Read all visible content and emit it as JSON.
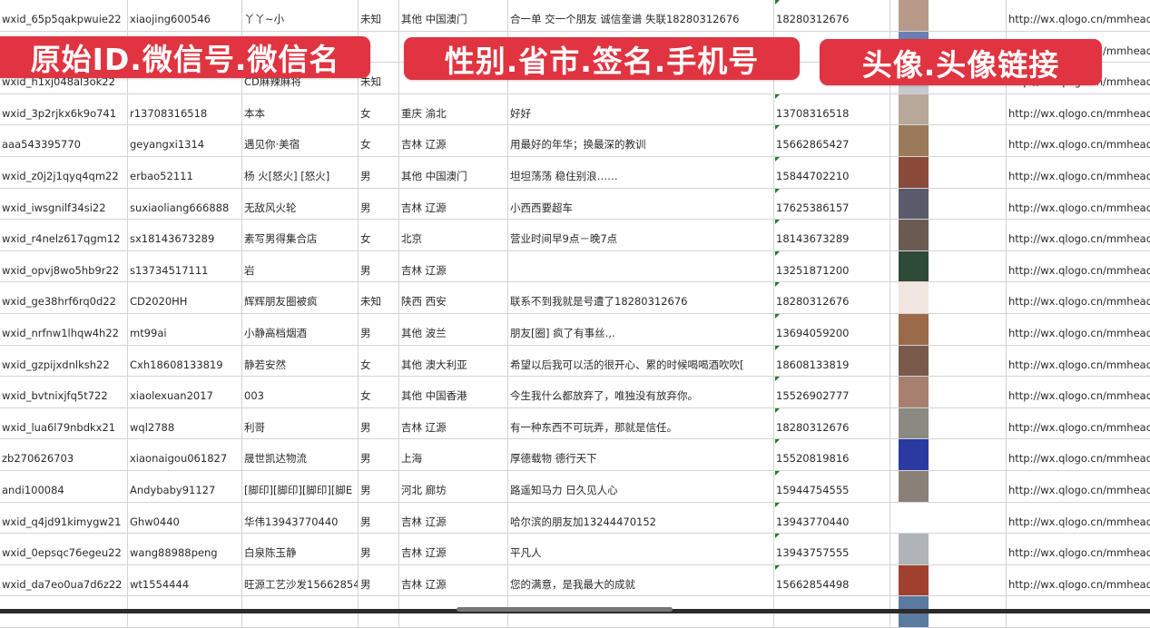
{
  "banners": [
    "原始ID.微信号.微信名",
    "性别.省市.签名.手机号",
    "头像.头像链接"
  ],
  "rows": [
    {
      "id": "wxid_65p5qakpwuie22",
      "wechat": "xiaojing600546",
      "name": "丫丫~小",
      "gender": "未知",
      "region": "其他 中国澳门",
      "signature": "合一单 交一个朋友 诚信奎谱 失联18280312676",
      "phone": "18280312676",
      "avatar_color": "#b89a8a",
      "url": "http://wx.qlogo.cn/mmhead"
    },
    {
      "id": "",
      "wechat": "",
      "name": "",
      "gender": "",
      "region": "",
      "signature": "",
      "phone": "",
      "avatar_color": "#6a7fb0",
      "url": "http://wx.qlogo.cn/mmhead"
    },
    {
      "id": "wxid_h1xj048al3ok22",
      "wechat": "",
      "name": "CD麻辣麻将",
      "gender": "未知",
      "region": "",
      "signature": "",
      "phone": "",
      "avatar_color": "#c8c8d0",
      "url": "http://wx.qlogo.cn/mmhead"
    },
    {
      "id": "wxid_3p2rjkx6k9o741",
      "wechat": "r13708316518",
      "name": "本本",
      "gender": "女",
      "region": "重庆 渝北",
      "signature": "好好",
      "phone": "13708316518",
      "avatar_color": "#b8a89a",
      "url": "http://wx.qlogo.cn/mmhead"
    },
    {
      "id": "aaa543395770",
      "wechat": "geyangxi1314",
      "name": "遇见你·美宿",
      "gender": "女",
      "region": "吉林 辽源",
      "signature": "用最好的年华；换最深的教训",
      "phone": "15662865427",
      "avatar_color": "#9a7a5a",
      "url": "http://wx.qlogo.cn/mmhead"
    },
    {
      "id": "wxid_z0j2j1qyq4qm22",
      "wechat": "erbao52111",
      "name": "杨 火[怒火] [怒火]",
      "gender": "男",
      "region": "其他 中国澳门",
      "signature": "坦坦荡荡 稳住别浪……",
      "phone": "15844702210",
      "avatar_color": "#8a4a3a",
      "url": "http://wx.qlogo.cn/mmhead"
    },
    {
      "id": "wxid_iwsgnilf34si22",
      "wechat": "suxiaoliang666888",
      "name": "无敌风火轮",
      "gender": "男",
      "region": "吉林 辽源",
      "signature": "小西西要超车",
      "phone": "17625386157",
      "avatar_color": "#5a5a6a",
      "url": "http://wx.qlogo.cn/mmhead"
    },
    {
      "id": "wxid_r4nelz617qgm12",
      "wechat": "sx18143673289",
      "name": "素写男得集合店",
      "gender": "女",
      "region": "北京",
      "signature": "营业时间早9点－晚7点",
      "phone": "18143673289",
      "avatar_color": "#6a5a50",
      "url": "http://wx.qlogo.cn/mmhead"
    },
    {
      "id": "wxid_opvj8wo5hb9r22",
      "wechat": "s13734517111",
      "name": "岩",
      "gender": "男",
      "region": "吉林 辽源",
      "signature": "",
      "phone": "13251871200",
      "avatar_color": "#2e4a38",
      "url": "http://wx.qlogo.cn/mmhead"
    },
    {
      "id": "wxid_ge38hrf6rq0d22",
      "wechat": "CD2020HH",
      "name": "辉辉朋友圈被疯",
      "gender": "未知",
      "region": "陕西 西安",
      "signature": "联系不到我就是号遭了18280312676",
      "phone": "18280312676",
      "avatar_color": "#f2e6e0",
      "url": "http://wx.qlogo.cn/mmhead"
    },
    {
      "id": "wxid_nrfnw1lhqw4h22",
      "wechat": "mt99ai",
      "name": "小静高档烟酒",
      "gender": "男",
      "region": "其他 波兰",
      "signature": "朋友[圈] 疯了有事丝.,.",
      "phone": "13694059200",
      "avatar_color": "#9a6a4a",
      "url": "http://wx.qlogo.cn/mmhead"
    },
    {
      "id": "wxid_gzpijxdnlksh22",
      "wechat": "Cxh18608133819",
      "name": "静若安然",
      "gender": "女",
      "region": "其他 澳大利亚",
      "signature": "希望以后我可以活的很开心、累的时候喝喝酒吹吹[",
      "phone": "18608133819",
      "avatar_color": "#7a5a4a",
      "url": "http://wx.qlogo.cn/mmhead"
    },
    {
      "id": "wxid_bvtnixjfq5t722",
      "wechat": "xiaolexuan2017",
      "name": "003",
      "gender": "女",
      "region": "其他 中国香港",
      "signature": "今生我什么都放弃了，唯独没有放弃你。",
      "phone": "15526902777",
      "avatar_color": "#a88070",
      "url": "http://wx.qlogo.cn/mmhead"
    },
    {
      "id": "wxid_lua6l79nbdkx21",
      "wechat": "wql2788",
      "name": "利哥",
      "gender": "男",
      "region": "吉林 辽源",
      "signature": "有一种东西不可玩弄，那就是信任。",
      "phone": "18280312676",
      "avatar_color": "#8a8a80",
      "url": "http://wx.qlogo.cn/mmhead"
    },
    {
      "id": "zb270626703",
      "wechat": "xiaonaigou061827",
      "name": "晟世凯达物流",
      "gender": "男",
      "region": "上海",
      "signature": "厚德载物 德行天下",
      "phone": "15520819816",
      "avatar_color": "#2a3aa0",
      "url": "http://wx.qlogo.cn/mmhead"
    },
    {
      "id": "andi100084",
      "wechat": "Andybaby91127",
      "name": "[脚印][脚印][脚印][脚E",
      "gender": "男",
      "region": "河北 廊坊",
      "signature": "路遥知马力 日久见人心",
      "phone": "15944754555",
      "avatar_color": "#8a8078",
      "url": "http://wx.qlogo.cn/mmhead"
    },
    {
      "id": "wxid_q4jd91kimygw21",
      "wechat": "Ghw0440",
      "name": "华伟13943770440",
      "gender": "男",
      "region": "吉林 辽源",
      "signature": "哈尔滨的朋友加13244470152",
      "phone": "13943770440",
      "avatar_color": "#ffffff",
      "url": "http://wx.qlogo.cn/mmhead"
    },
    {
      "id": "wxid_0epsqc76egeu22",
      "wechat": "wang88988peng",
      "name": "白泉陈玉静",
      "gender": "男",
      "region": "吉林 辽源",
      "signature": "平凡人",
      "phone": "13943757555",
      "avatar_color": "#b0b4b8",
      "url": "http://wx.qlogo.cn/mmhead"
    },
    {
      "id": "wxid_da7eo0ua7d6z22",
      "wechat": "wt1554444",
      "name": "旺源工艺沙发15662854",
      "gender": "男",
      "region": "吉林 辽源",
      "signature": "您的满意，是我最大的成就",
      "phone": "15662854498",
      "avatar_color": "#a04030",
      "url": "http://wx.qlogo.cn/mmhead"
    },
    {
      "id": "",
      "wechat": "",
      "name": "",
      "gender": "",
      "region": "",
      "signature": "",
      "phone": "",
      "avatar_color": "#5a7aa0",
      "url": ""
    }
  ]
}
